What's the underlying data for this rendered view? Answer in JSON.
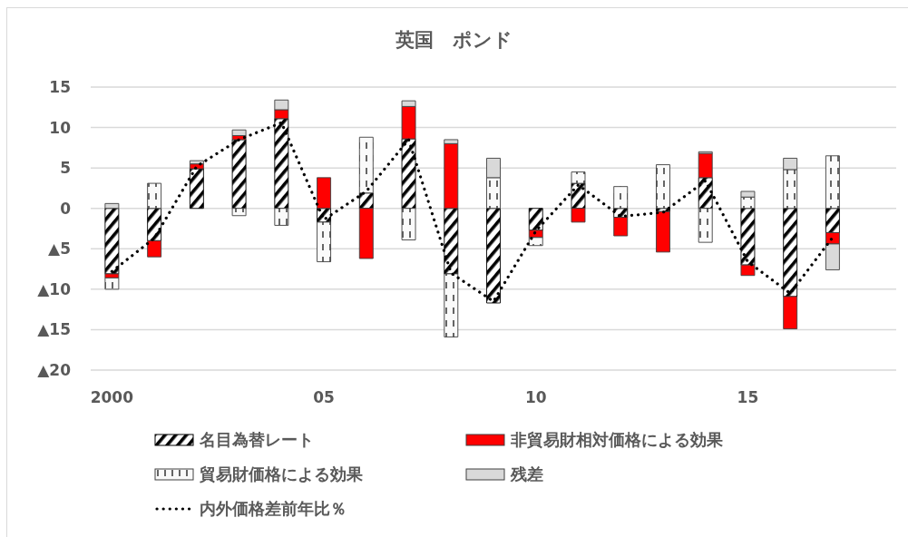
{
  "chart_data": {
    "type": "bar",
    "title": "英国　ポンド",
    "stacked": true,
    "grid": "y",
    "legend": "bottom",
    "line_style": "dotted",
    "categories": [
      "2000",
      null,
      null,
      null,
      null,
      "05",
      null,
      null,
      null,
      null,
      "10",
      null,
      null,
      null,
      null,
      "15",
      null,
      null,
      null
    ],
    "ylim": [
      -20,
      15
    ],
    "yticks": [
      {
        "value": -20,
        "label": "▲20"
      },
      {
        "value": -15,
        "label": "▲15"
      },
      {
        "value": -10,
        "label": "▲10"
      },
      {
        "value": -5,
        "label": "▲5"
      },
      0,
      5,
      10,
      15
    ],
    "series": [
      {
        "name": "名目為替レート",
        "color": "#000000",
        "values": [
          -8.1,
          -4.0,
          4.9,
          8.5,
          11.1,
          -1.7,
          1.9,
          8.6,
          -8.1,
          -11.7,
          -2.7,
          3.1,
          -1.1,
          -0.4,
          3.8,
          -7.0,
          -10.9,
          -3.0,
          null
        ]
      },
      {
        "name": "非貿易財相対価格による効果",
        "color": "#ff0000",
        "values": [
          -0.5,
          -2.0,
          0.6,
          0.5,
          1.1,
          3.8,
          -6.2,
          4.0,
          8.0,
          null,
          -0.9,
          -1.7,
          -2.3,
          -5.0,
          3.0,
          -1.3,
          -4.0,
          -1.4,
          null
        ]
      },
      {
        "name": "貿易財価格による効果",
        "color": "#404040",
        "values": [
          -1.4,
          3.1,
          null,
          -0.9,
          -2.1,
          -4.9,
          6.9,
          -3.9,
          -7.8,
          3.8,
          -1.0,
          1.4,
          2.7,
          5.4,
          -4.2,
          1.4,
          4.8,
          6.5,
          null
        ]
      },
      {
        "name": "残差",
        "color": "#d9d9d9",
        "values": [
          0.6,
          null,
          0.4,
          0.7,
          1.2,
          null,
          null,
          0.7,
          0.5,
          2.4,
          null,
          null,
          null,
          null,
          0.2,
          0.7,
          1.4,
          -3.2,
          null
        ]
      },
      {
        "name": "内外価格差前年比％",
        "type": "line",
        "color": "#000000",
        "values": [
          -7.8,
          -3.7,
          5.2,
          8.5,
          10.6,
          -1.4,
          2.1,
          8.5,
          -8.0,
          -11.5,
          -2.8,
          2.9,
          -1.0,
          -0.5,
          3.4,
          -6.6,
          -10.5,
          -3.6,
          null
        ]
      }
    ]
  }
}
